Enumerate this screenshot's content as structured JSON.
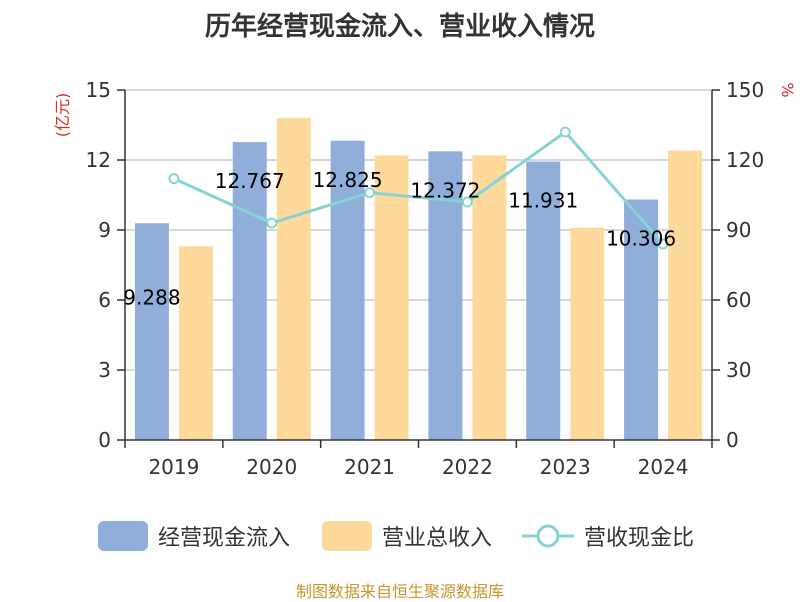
{
  "title": "历年经营现金流入、营业收入情况",
  "source": "制图数据来自恒生聚源数据库",
  "colors": {
    "cash_inflow": "#8faed9",
    "revenue": "#fdd99b",
    "ratio": "#86d3d6",
    "axis": "#333333",
    "grid": "#cccccc",
    "unit": "#e0281e"
  },
  "legend_labels": [
    "经营现金流入",
    "营业总收入",
    "营收现金比"
  ],
  "chart_data": {
    "type": "bar",
    "title": "历年经营现金流入、营业收入情况",
    "categories": [
      "2019",
      "2020",
      "2021",
      "2022",
      "2023",
      "2024"
    ],
    "series": [
      {
        "name": "经营现金流入",
        "type": "bar",
        "axis": "left",
        "values": [
          9.288,
          12.767,
          12.825,
          12.372,
          11.931,
          10.306
        ],
        "data_labels": [
          "9.288",
          "12.767",
          "12.825",
          "12.372",
          "11.931",
          "10.306"
        ]
      },
      {
        "name": "营业总收入",
        "type": "bar",
        "axis": "left",
        "values": [
          8.3,
          13.8,
          12.2,
          12.2,
          9.1,
          12.4
        ]
      },
      {
        "name": "营收现金比",
        "type": "line",
        "axis": "right",
        "values": [
          112,
          93,
          106,
          102,
          132,
          84
        ]
      }
    ],
    "y_left": {
      "unit": "(亿元)",
      "range": [
        0,
        15
      ],
      "ticks": [
        "0",
        "3",
        "6",
        "9",
        "12",
        "15"
      ]
    },
    "y_right": {
      "unit": "%",
      "range": [
        0,
        150
      ],
      "ticks": [
        "0",
        "30",
        "60",
        "90",
        "120",
        "150"
      ]
    },
    "grid": true,
    "legend_position": "bottom"
  }
}
